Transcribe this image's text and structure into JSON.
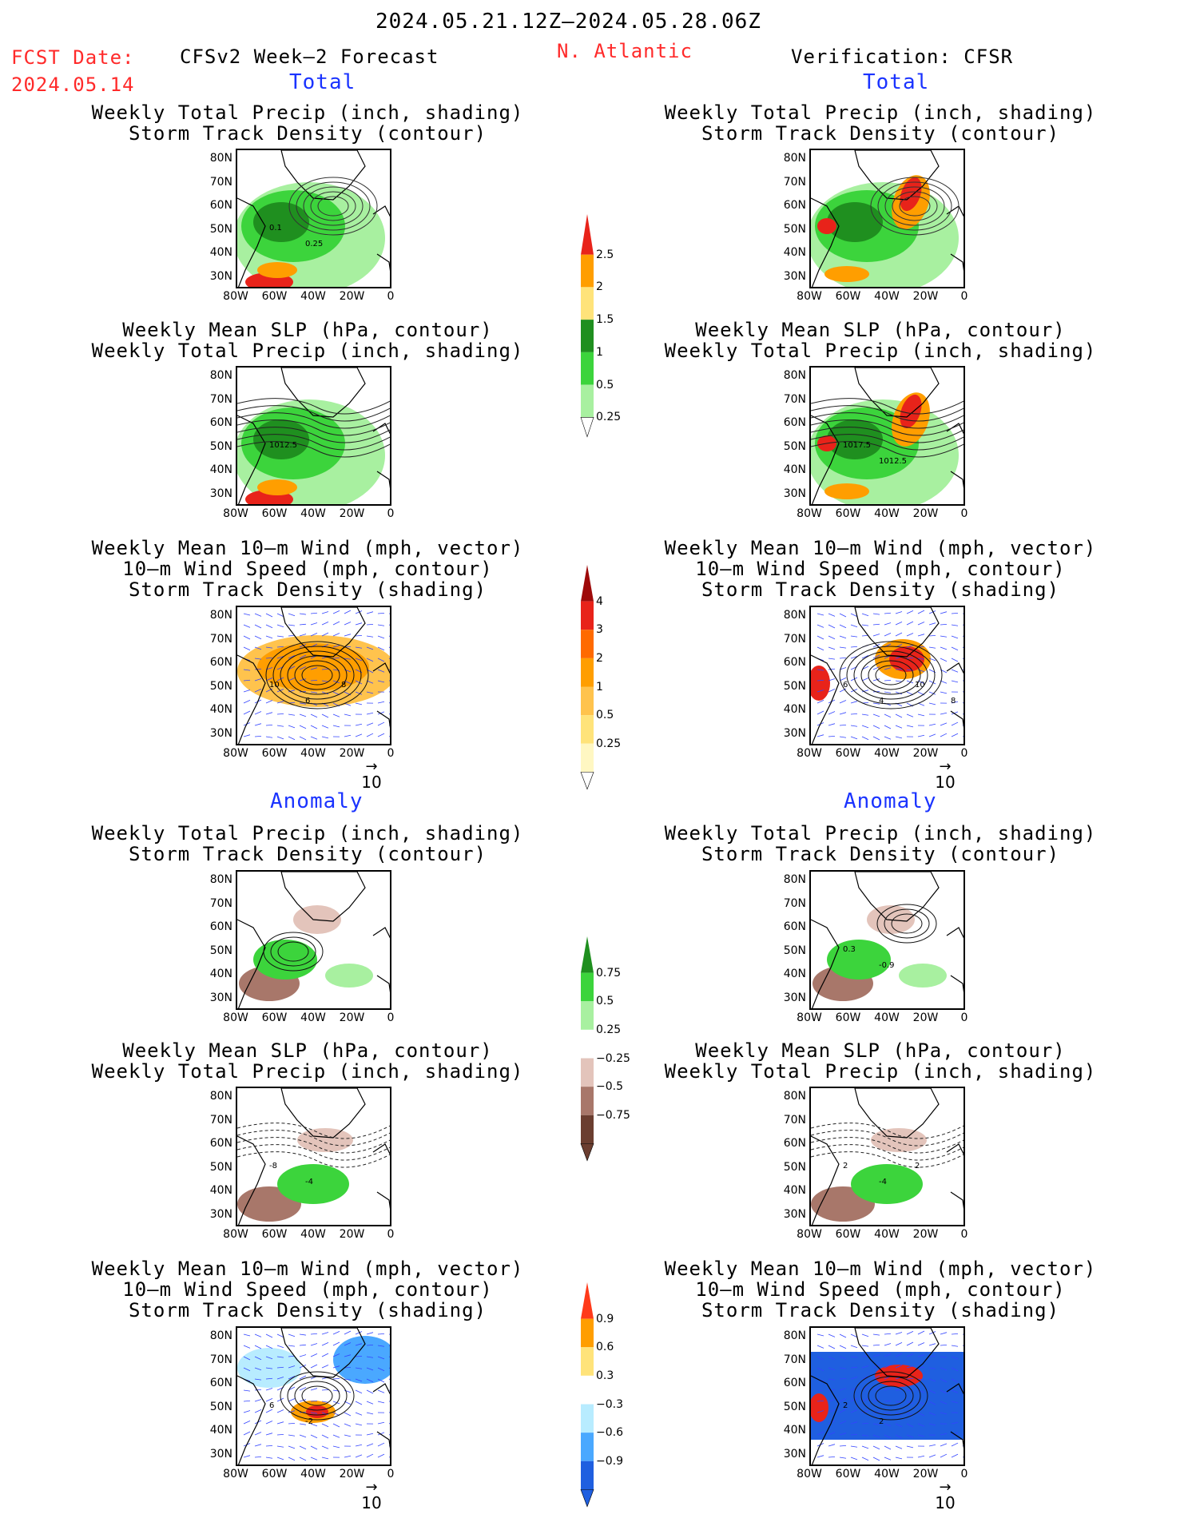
{
  "header": {
    "period": "2024.05.21.12Z–2024.05.28.06Z",
    "fcst_label": "FCST Date:",
    "fcst_date": "2024.05.14",
    "left_title": "CFSv2 Week–2 Forecast",
    "region": "N. Atlantic",
    "right_title": "Verification: CFSR"
  },
  "sections": {
    "total": "Total",
    "anomaly": "Anomaly"
  },
  "panel_titles": {
    "precip_track": [
      "Weekly Total Precip (inch, shading)",
      "Storm Track Density (contour)"
    ],
    "slp_precip": [
      "Weekly Mean SLP (hPa, contour)",
      "Weekly Total Precip (inch, shading)"
    ],
    "wind": [
      "Weekly Mean 10–m Wind (mph, vector)",
      "10–m Wind Speed (mph, contour)",
      "Storm Track Density (shading)"
    ]
  },
  "axes": {
    "lat": [
      "80N",
      "70N",
      "60N",
      "50N",
      "40N",
      "30N"
    ],
    "lon": [
      "80W",
      "60W",
      "40W",
      "20W",
      "0"
    ]
  },
  "vector_ref": "10",
  "contour_labels": {
    "f_precip_track": [
      "0.1",
      "0.25"
    ],
    "f_slp": [
      "1012.5"
    ],
    "v_slp": [
      "1017.5",
      "1012.5"
    ],
    "f_wind": [
      "10",
      "6",
      "8"
    ],
    "v_wind": [
      "6",
      "4",
      "10",
      "8"
    ],
    "f_anom_precip": [],
    "v_anom_precip": [
      "0.3",
      "-0.9"
    ],
    "f_anom_slp": [
      "-8",
      "-4"
    ],
    "v_anom_slp": [
      "2",
      "-4",
      "2"
    ],
    "f_anom_wind": [
      "6",
      "-2"
    ],
    "v_anom_wind": [
      "2",
      "2"
    ]
  },
  "colorbars": {
    "precip_total": {
      "labels": [
        "2.5",
        "2",
        "1.5",
        "1",
        "0.5",
        "0.25"
      ],
      "colors": [
        "#e8231a",
        "#ff9e00",
        "#ffe37a",
        "#1f8f1f",
        "#3cd43c",
        "#a8f0a0"
      ]
    },
    "track_total": {
      "labels": [
        "4",
        "3",
        "2",
        "1",
        "0.5",
        "0.25"
      ],
      "colors": [
        "#9e0a0a",
        "#e8231a",
        "#ff6a00",
        "#ff9e00",
        "#ffc34d",
        "#ffe37a",
        "#fff7c2"
      ]
    },
    "precip_anom": {
      "labels": [
        "0.75",
        "0.5",
        "0.25",
        "−0.25",
        "−0.5",
        "−0.75"
      ],
      "colors": [
        "#1f8f1f",
        "#3cd43c",
        "#a8f0a0",
        "#ffffff",
        "#e3c4bb",
        "#a8776a",
        "#6b3e30"
      ]
    },
    "track_anom": {
      "labels": [
        "0.9",
        "0.6",
        "0.3",
        "−0.3",
        "−0.6",
        "−0.9"
      ],
      "colors": [
        "#ff3a1a",
        "#ff9e00",
        "#ffe37a",
        "#ffffff",
        "#b8ecff",
        "#4aa8ff",
        "#1f5fe0"
      ]
    }
  }
}
